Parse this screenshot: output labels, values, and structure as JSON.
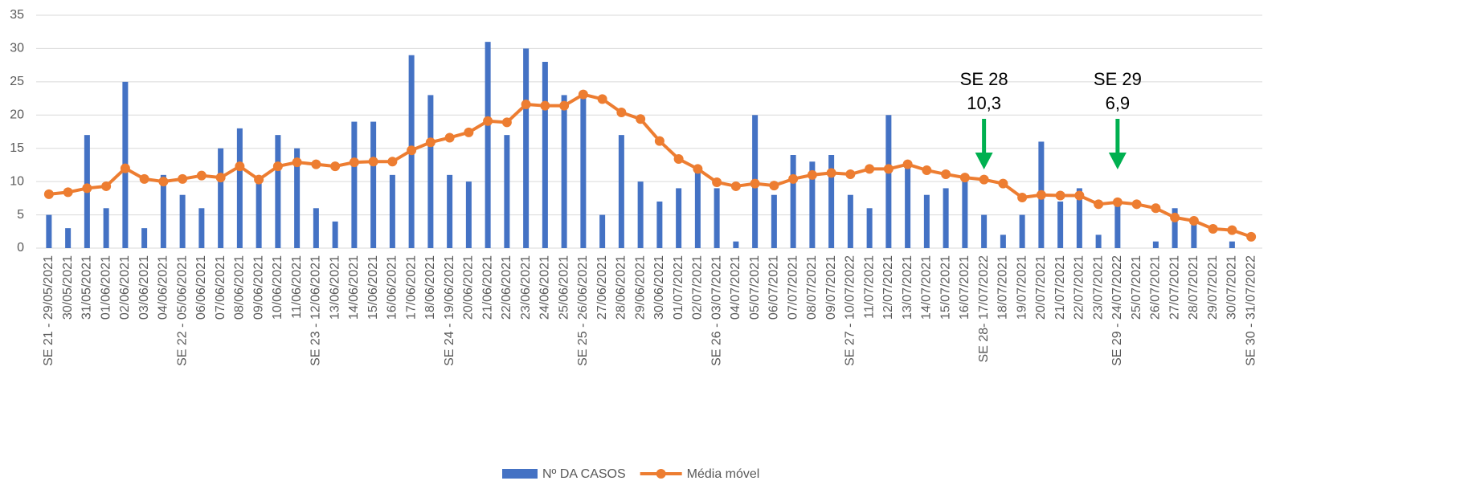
{
  "chart_data": {
    "type": "bar_line",
    "categories": [
      "SE 21 - 29/05/2021",
      "30/05/2021",
      "31/05/2021",
      "01/06/2021",
      "02/06/2021",
      "03/06/2021",
      "04/06/2021",
      "SE 22 - 05/06/2021",
      "06/06/2021",
      "07/06/2021",
      "08/06/2021",
      "09/06/2021",
      "10/06/2021",
      "11/06/2021",
      "SE 23 - 12/06/2021",
      "13/06/2021",
      "14/06/2021",
      "15/06/2021",
      "16/06/2021",
      "17/06/2021",
      "18/06/2021",
      "SE 24 - 19/06/2021",
      "20/06/2021",
      "21/06/2021",
      "22/06/2021",
      "23/06/2021",
      "24/06/2021",
      "25/06/2021",
      "SE 25 - 26/06/2021",
      "27/06/2021",
      "28/06/2021",
      "29/06/2021",
      "30/06/2021",
      "01/07/2021",
      "02/07/2021",
      "SE 26 - 03/07/2021",
      "04/07/2021",
      "05/07/2021",
      "06/07/2021",
      "07/07/2021",
      "08/07/2021",
      "09/07/2021",
      "SE 27 - 10/07/2022",
      "11/07/2021",
      "12/07/2021",
      "13/07/2021",
      "14/07/2021",
      "15/07/2021",
      "16/07/2021",
      "SE 28- 17/07/2022",
      "18/07/2021",
      "19/07/2021",
      "20/07/2021",
      "21/07/2021",
      "22/07/2021",
      "23/07/2021",
      "SE 29 - 24/07/2022",
      "25/07/2021",
      "26/07/2021",
      "27/07/2021",
      "28/07/2021",
      "29/07/2021",
      "30/07/2021",
      "SE 30 - 31/07/2022"
    ],
    "series": [
      {
        "name": "Nº DA CASOS",
        "type": "bar",
        "color": "#4472c4",
        "values": [
          5,
          3,
          17,
          6,
          25,
          3,
          11,
          8,
          6,
          15,
          18,
          10,
          17,
          15,
          6,
          4,
          19,
          19,
          11,
          29,
          23,
          11,
          10,
          31,
          17,
          30,
          28,
          23,
          23,
          5,
          17,
          10,
          7,
          9,
          12,
          9,
          1,
          20,
          8,
          14,
          13,
          14,
          8,
          6,
          20,
          13,
          8,
          9,
          11,
          5,
          2,
          5,
          16,
          7,
          9,
          2,
          7,
          0,
          1,
          6,
          4,
          0,
          1,
          0
        ]
      },
      {
        "name": "Média móvel",
        "type": "line",
        "color": "#ed7d31",
        "values": [
          8.1,
          8.4,
          9.0,
          9.3,
          12.0,
          10.4,
          10.0,
          10.4,
          10.9,
          10.6,
          12.3,
          10.3,
          12.3,
          12.9,
          12.6,
          12.3,
          12.9,
          13.0,
          13.0,
          14.7,
          15.9,
          16.6,
          17.4,
          19.1,
          18.9,
          21.6,
          21.4,
          21.4,
          23.1,
          22.4,
          20.4,
          19.4,
          16.1,
          13.4,
          11.9,
          9.9,
          9.3,
          9.7,
          9.4,
          10.4,
          11.0,
          11.3,
          11.1,
          11.9,
          11.9,
          12.6,
          11.7,
          11.1,
          10.6,
          10.3,
          9.7,
          7.6,
          8.0,
          7.9,
          7.9,
          6.6,
          6.9,
          6.6,
          6.0,
          4.6,
          4.1,
          2.9,
          2.7,
          1.7
        ]
      }
    ],
    "annotations": [
      {
        "lines": [
          "SE 28",
          "10,3"
        ],
        "color": "#00b050"
      },
      {
        "lines": [
          "SE 29",
          "6,9"
        ],
        "color": "#00b050"
      }
    ],
    "ylim": [
      0,
      35
    ],
    "yticks": [
      0,
      5,
      10,
      15,
      20,
      25,
      30,
      35
    ],
    "grid": true,
    "legend": "bottom"
  }
}
